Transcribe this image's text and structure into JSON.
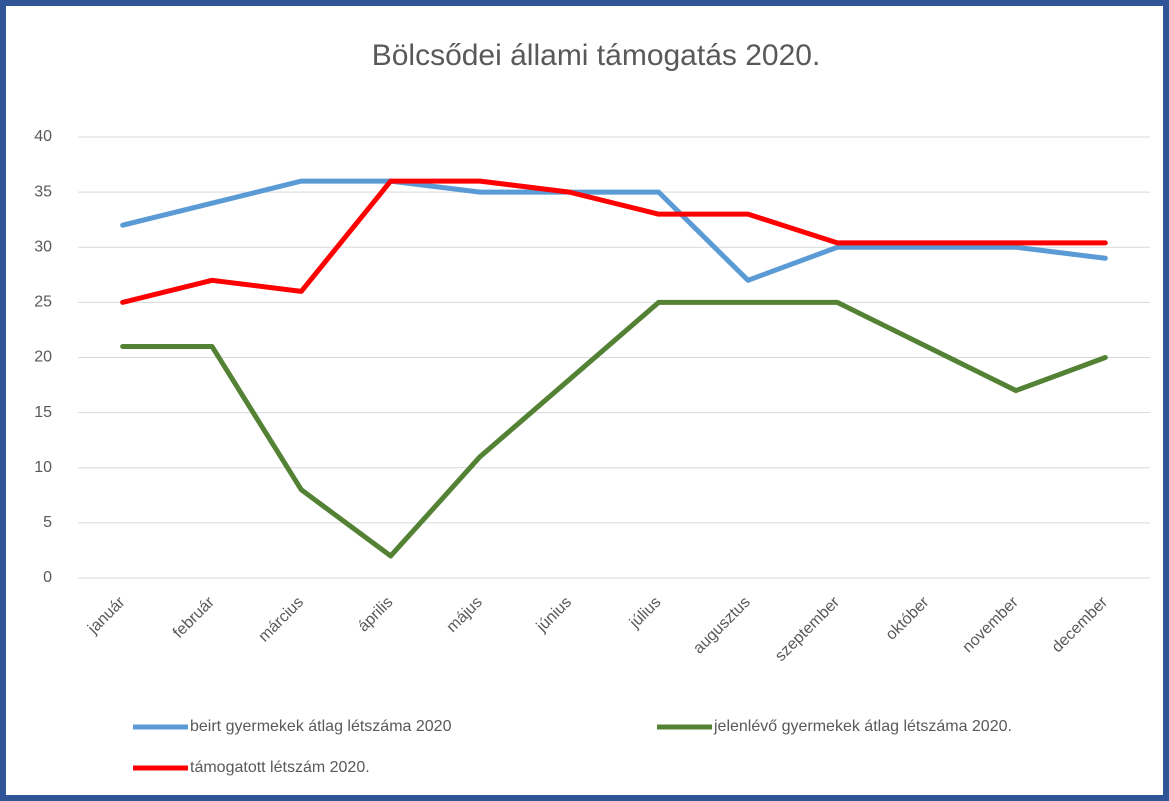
{
  "chart_data": {
    "type": "line",
    "title": "Bölcsődei állami támogatás 2020.",
    "categories": [
      "január",
      "február",
      "március",
      "április",
      "május",
      "június",
      "július",
      "augusztus",
      "szeptember",
      "október",
      "november",
      "december"
    ],
    "series": [
      {
        "name": "beirt gyermekek átlag létszáma 2020",
        "color": "#5b9bd5",
        "values": [
          32,
          34,
          36,
          36,
          35,
          35,
          35,
          27,
          30,
          30,
          30,
          29
        ]
      },
      {
        "name": "jelenlévő gyermekek átlag létszáma 2020.",
        "color": "#548235",
        "values": [
          21,
          21,
          8,
          2,
          11,
          18,
          25,
          25,
          25,
          21,
          17,
          20
        ]
      },
      {
        "name": "támogatott létszám 2020.",
        "color": "#ff0000",
        "values": [
          25,
          27,
          26,
          36,
          36,
          35,
          33,
          33,
          30.4,
          30.4,
          30.4,
          30.4
        ]
      }
    ],
    "ylim": [
      0,
      40
    ],
    "yticks": [
      0,
      5,
      10,
      15,
      20,
      25,
      30,
      35,
      40
    ],
    "grid": true,
    "legend": "bottom"
  }
}
